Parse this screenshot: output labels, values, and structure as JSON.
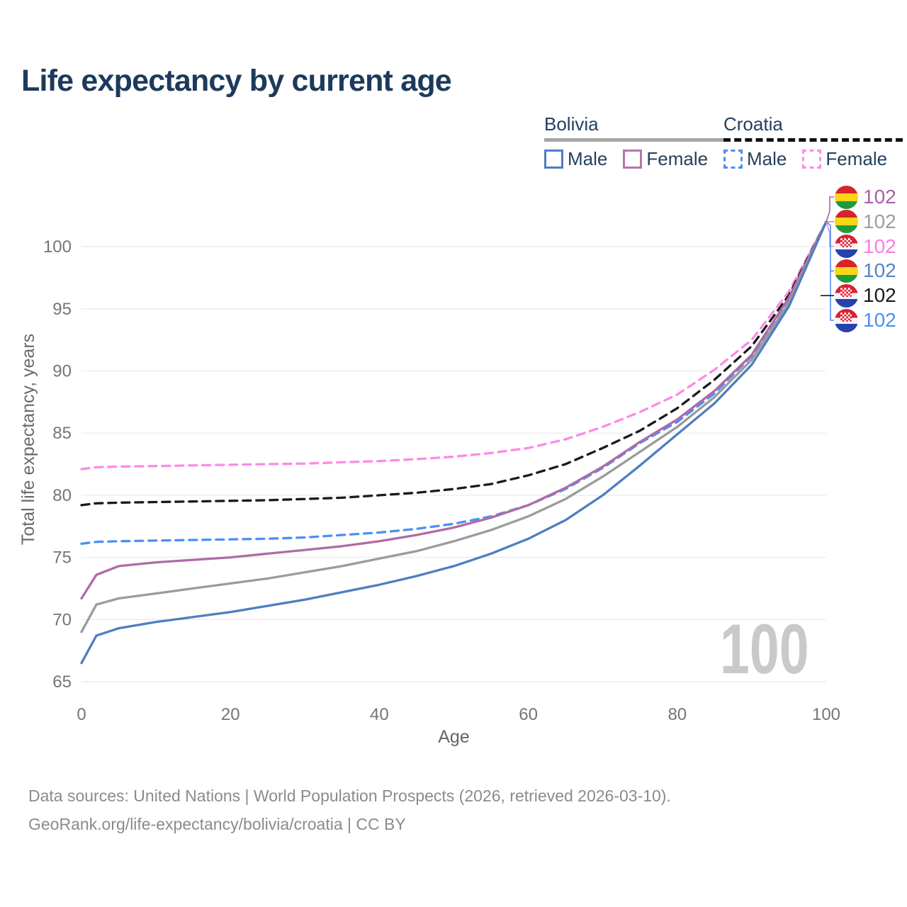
{
  "title": "Life expectancy by current age",
  "legend": {
    "groups": [
      {
        "name": "Bolivia",
        "line_style": "solid",
        "underline_color": "#a6a6a6",
        "items": [
          {
            "label": "Male",
            "color": "#4e7ec1",
            "dashed": false
          },
          {
            "label": "Female",
            "color": "#b277ae",
            "dashed": false
          }
        ]
      },
      {
        "name": "Croatia",
        "line_style": "dashed",
        "underline_color": "#111111",
        "items": [
          {
            "label": "Male",
            "color": "#4b8ff5",
            "dashed": true
          },
          {
            "label": "Female",
            "color": "#fc8ae6",
            "dashed": true
          }
        ]
      }
    ]
  },
  "chart_data": {
    "type": "line",
    "title": "Life expectancy by current age",
    "xlabel": "Age",
    "ylabel": "Total life expectancy, years",
    "xlim": [
      0,
      100
    ],
    "ylim": [
      65,
      102
    ],
    "xticks": [
      0,
      20,
      40,
      60,
      80,
      100
    ],
    "yticks": [
      65,
      70,
      75,
      80,
      85,
      90,
      95,
      100
    ],
    "grid": "horizontal-only",
    "legend_position": "top-right",
    "x": [
      0,
      2,
      5,
      10,
      15,
      20,
      25,
      30,
      35,
      40,
      45,
      50,
      55,
      60,
      65,
      70,
      75,
      80,
      85,
      90,
      95,
      100
    ],
    "series": [
      {
        "name": "Croatia Female",
        "country": "Croatia",
        "sex": "Female",
        "color": "#fc8ae6",
        "dash": true,
        "values": [
          82.1,
          82.25,
          82.3,
          82.35,
          82.4,
          82.45,
          82.5,
          82.55,
          82.65,
          82.75,
          82.9,
          83.1,
          83.4,
          83.8,
          84.5,
          85.5,
          86.7,
          88.1,
          90.1,
          92.5,
          96.4,
          102
        ]
      },
      {
        "name": "Croatia Total",
        "country": "Croatia",
        "sex": "Total",
        "color": "#1a1a1a",
        "dash": true,
        "values": [
          79.2,
          79.35,
          79.4,
          79.45,
          79.5,
          79.55,
          79.6,
          79.7,
          79.8,
          80.0,
          80.2,
          80.5,
          80.9,
          81.6,
          82.5,
          83.8,
          85.2,
          87.0,
          89.3,
          92.0,
          96.1,
          102
        ]
      },
      {
        "name": "Croatia Male",
        "country": "Croatia",
        "sex": "Male",
        "color": "#4b8ff5",
        "dash": true,
        "values": [
          76.1,
          76.25,
          76.3,
          76.35,
          76.4,
          76.45,
          76.5,
          76.6,
          76.8,
          77.0,
          77.3,
          77.7,
          78.3,
          79.2,
          80.5,
          82.2,
          84.2,
          85.9,
          88.2,
          91.2,
          95.8,
          102
        ]
      },
      {
        "name": "Bolivia Female",
        "country": "Bolivia",
        "sex": "Female",
        "color": "#b06ba6",
        "dash": false,
        "values": [
          71.7,
          73.6,
          74.3,
          74.6,
          74.8,
          75.0,
          75.3,
          75.6,
          75.9,
          76.3,
          76.8,
          77.4,
          78.2,
          79.2,
          80.6,
          82.3,
          84.3,
          86.1,
          88.4,
          91.3,
          95.9,
          102
        ]
      },
      {
        "name": "Bolivia Total",
        "country": "Bolivia",
        "sex": "Total",
        "color": "#9b9b9b",
        "dash": false,
        "values": [
          69.0,
          71.2,
          71.7,
          72.1,
          72.5,
          72.9,
          73.3,
          73.8,
          74.3,
          74.9,
          75.5,
          76.3,
          77.2,
          78.3,
          79.7,
          81.5,
          83.5,
          85.5,
          87.9,
          90.9,
          95.5,
          102
        ]
      },
      {
        "name": "Bolivia Male",
        "country": "Bolivia",
        "sex": "Male",
        "color": "#4e7ec1",
        "dash": false,
        "values": [
          66.5,
          68.7,
          69.3,
          69.8,
          70.2,
          70.6,
          71.1,
          71.6,
          72.2,
          72.8,
          73.5,
          74.3,
          75.3,
          76.5,
          78.0,
          80.0,
          82.4,
          84.9,
          87.4,
          90.5,
          95.2,
          102
        ]
      }
    ],
    "end_labels": [
      {
        "flag": "bolivia",
        "series": "Bolivia Female",
        "value": "102",
        "color": "#a962a2"
      },
      {
        "flag": "bolivia",
        "series": "Bolivia Total",
        "value": "102",
        "color": "#9e9e9e"
      },
      {
        "flag": "croatia",
        "series": "Croatia Female",
        "value": "102",
        "color": "#fb7ce4"
      },
      {
        "flag": "bolivia",
        "series": "Bolivia Male",
        "value": "102",
        "color": "#5584c6"
      },
      {
        "flag": "croatia",
        "series": "Croatia Total",
        "value": "102",
        "color": "#1a1a1a"
      },
      {
        "flag": "croatia",
        "series": "Croatia Male",
        "value": "102",
        "color": "#4b8ff5"
      }
    ],
    "age_counter": "100"
  },
  "footer": {
    "line1": "Data sources: United Nations | World Population Prospects (2026, retrieved 2026-03-10).",
    "line2": "GeoRank.org/life-expectancy/bolivia/croatia | CC BY"
  }
}
